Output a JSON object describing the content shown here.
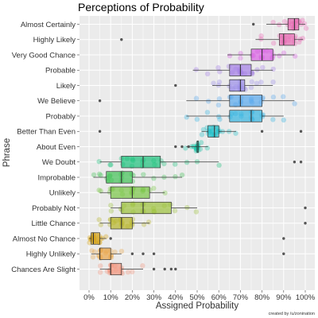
{
  "chart_data": {
    "type": "boxplot",
    "title": "Perceptions of Probability",
    "xlabel": "Assigned Probability",
    "ylabel": "Phrase",
    "xlim": [
      0,
      100
    ],
    "x_ticks": [
      "0%",
      "10%",
      "20%",
      "30%",
      "40%",
      "50%",
      "60%",
      "70%",
      "80%",
      "90%",
      "100%"
    ],
    "grid": true,
    "credit": "created by /u/zonination",
    "categories": [
      "Almost Certainly",
      "Highly Likely",
      "Very Good Chance",
      "Probable",
      "Likely",
      "We Believe",
      "Probably",
      "Better Than Even",
      "About Even",
      "We Doubt",
      "Improbable",
      "Unlikely",
      "Probably Not",
      "Little Chance",
      "Almost No Chance",
      "Highly Unlikely",
      "Chances Are Slight"
    ],
    "series": [
      {
        "phrase": "Almost Certainly",
        "color": "#e76bb4",
        "min": 82,
        "q1": 92,
        "median": 95,
        "q3": 97,
        "max": 100,
        "outliers": [
          76
        ],
        "points": [
          92,
          93,
          94,
          95,
          95,
          95,
          96,
          97,
          97,
          98,
          99,
          100,
          100,
          90,
          88,
          85,
          95,
          95,
          95,
          96
        ]
      },
      {
        "phrase": "Highly Likely",
        "color": "#e76bb4",
        "min": 77,
        "q1": 88,
        "median": 90,
        "q3": 95,
        "max": 99,
        "outliers": [
          15
        ],
        "points": [
          88,
          89,
          90,
          90,
          90,
          90,
          92,
          93,
          95,
          95,
          95,
          97,
          99,
          85,
          80,
          80,
          90,
          90,
          95,
          98
        ]
      },
      {
        "phrase": "Very Good Chance",
        "color": "#d85fe3",
        "min": 64,
        "q1": 75,
        "median": 80,
        "q3": 85,
        "max": 95,
        "outliers": [],
        "points": [
          75,
          76,
          78,
          80,
          80,
          80,
          80,
          82,
          85,
          85,
          85,
          88,
          90,
          95,
          70,
          70,
          65,
          80,
          80,
          85
        ]
      },
      {
        "phrase": "Probable",
        "color": "#a27ee6",
        "min": 48,
        "q1": 65,
        "median": 70,
        "q3": 75,
        "max": 85,
        "outliers": [],
        "points": [
          65,
          66,
          68,
          70,
          70,
          70,
          70,
          72,
          75,
          75,
          75,
          78,
          80,
          85,
          60,
          60,
          55,
          50,
          70,
          70
        ]
      },
      {
        "phrase": "Likely",
        "color": "#9a8de8",
        "min": 57,
        "q1": 65,
        "median": 70,
        "q3": 72,
        "max": 85,
        "outliers": [
          40
        ],
        "points": [
          65,
          66,
          68,
          70,
          70,
          70,
          70,
          72,
          72,
          75,
          75,
          78,
          80,
          85,
          60,
          60,
          58,
          70,
          70,
          70
        ]
      },
      {
        "phrase": "We Believe",
        "color": "#55a7ec",
        "min": 45,
        "q1": 65,
        "median": 70,
        "q3": 80,
        "max": 95,
        "outliers": [
          5
        ],
        "points": [
          65,
          66,
          68,
          70,
          70,
          70,
          75,
          75,
          80,
          80,
          80,
          85,
          90,
          95,
          60,
          60,
          55,
          50,
          75,
          70
        ]
      },
      {
        "phrase": "Probably",
        "color": "#33b3e0",
        "min": 45,
        "q1": 65,
        "median": 75,
        "q3": 80,
        "max": 90,
        "outliers": [],
        "points": [
          65,
          66,
          68,
          70,
          70,
          75,
          75,
          75,
          80,
          80,
          80,
          85,
          90,
          60,
          60,
          55,
          50,
          45,
          75,
          75
        ]
      },
      {
        "phrase": "Better Than Even",
        "color": "#22bfc9",
        "min": 52,
        "q1": 55,
        "median": 58,
        "q3": 60,
        "max": 68,
        "outliers": [
          5,
          80,
          98
        ],
        "points": [
          55,
          55,
          56,
          57,
          58,
          58,
          60,
          60,
          60,
          62,
          65,
          68,
          52,
          53,
          55,
          58,
          60,
          58,
          57,
          56
        ]
      },
      {
        "phrase": "About Even",
        "color": "#16c2a6",
        "min": 45,
        "q1": 50,
        "median": 50,
        "q3": 50,
        "max": 55,
        "outliers": [
          40,
          43,
          46
        ],
        "points": [
          50,
          50,
          50,
          50,
          50,
          50,
          50,
          50,
          50,
          50,
          48,
          49,
          51,
          52,
          55,
          45,
          47,
          50,
          50,
          50
        ]
      },
      {
        "phrase": "We Doubt",
        "color": "#19c17a",
        "min": 5,
        "q1": 15,
        "median": 25,
        "q3": 33,
        "max": 60,
        "outliers": [
          95,
          98
        ],
        "points": [
          15,
          16,
          18,
          20,
          20,
          20,
          25,
          25,
          25,
          30,
          30,
          33,
          35,
          40,
          45,
          50,
          10,
          10,
          5,
          60
        ]
      },
      {
        "phrase": "Improbable",
        "color": "#41c155",
        "min": 2,
        "q1": 8,
        "median": 15,
        "q3": 20,
        "max": 43,
        "outliers": [],
        "points": [
          8,
          9,
          10,
          10,
          10,
          15,
          15,
          15,
          20,
          20,
          20,
          25,
          30,
          35,
          40,
          5,
          5,
          2,
          43,
          15
        ]
      },
      {
        "phrase": "Unlikely",
        "color": "#78c545",
        "min": 5,
        "q1": 10,
        "median": 20,
        "q3": 28,
        "max": 35,
        "outliers": [],
        "points": [
          10,
          11,
          15,
          15,
          20,
          20,
          20,
          20,
          25,
          25,
          28,
          30,
          35,
          5,
          5,
          10,
          10,
          20,
          20,
          25
        ]
      },
      {
        "phrase": "Probably Not",
        "color": "#9bc13a",
        "min": 10,
        "q1": 15,
        "median": 25,
        "q3": 38,
        "max": 50,
        "outliers": [
          100
        ],
        "points": [
          15,
          16,
          20,
          20,
          25,
          25,
          25,
          30,
          30,
          35,
          38,
          40,
          45,
          50,
          10,
          10,
          15,
          20,
          25,
          30
        ]
      },
      {
        "phrase": "Little Chance",
        "color": "#b7b52a",
        "min": 5,
        "q1": 10,
        "median": 15,
        "q3": 20,
        "max": 28,
        "outliers": [
          100
        ],
        "points": [
          10,
          11,
          12,
          15,
          15,
          15,
          15,
          18,
          20,
          20,
          20,
          25,
          28,
          5,
          5,
          10,
          10,
          15,
          15,
          20
        ]
      },
      {
        "phrase": "Almost No Chance",
        "color": "#d4a319",
        "min": 0,
        "q1": 1,
        "median": 2,
        "q3": 5,
        "max": 8,
        "outliers": [
          10,
          90
        ],
        "points": [
          1,
          1,
          2,
          2,
          2,
          2,
          3,
          4,
          5,
          5,
          5,
          6,
          8,
          0,
          0,
          1,
          2,
          2,
          3,
          5
        ]
      },
      {
        "phrase": "Highly Unlikely",
        "color": "#e8a54a",
        "min": 1,
        "q1": 5,
        "median": 5,
        "q3": 10,
        "max": 15,
        "outliers": [
          20,
          25,
          30,
          90
        ],
        "points": [
          5,
          5,
          5,
          5,
          5,
          6,
          8,
          10,
          10,
          10,
          10,
          12,
          15,
          1,
          2,
          3,
          4,
          5,
          8,
          10
        ]
      },
      {
        "phrase": "Chances Are Slight",
        "color": "#f2967e",
        "min": 5,
        "q1": 10,
        "median": 10,
        "q3": 15,
        "max": 25,
        "outliers": [
          30,
          35,
          38,
          40
        ],
        "points": [
          10,
          10,
          10,
          10,
          10,
          12,
          15,
          15,
          15,
          18,
          20,
          25,
          5,
          5,
          8,
          10,
          10,
          12,
          15,
          10
        ]
      }
    ]
  }
}
